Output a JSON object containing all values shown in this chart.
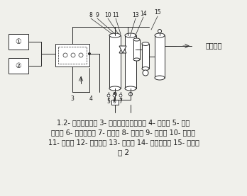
{
  "caption_lines": [
    "1.2- 螺杆式空压机 3- 双联除水除油过滤器 4- 冷却器 5- 除水",
    "过滤器 6- 除油过滤器 7- 切换阀 8- 吸附塔 9- 消音器 10- 止回阀",
    "11- 调节阀 12- 节流孔板 13- 加热器 14- 除尘过滤器 15- 储气罐"
  ],
  "figure_label": "图 2",
  "bg_color": "#f0f0eb",
  "text_color": "#1a1a1a",
  "line_color": "#2a2a2a",
  "font_size_caption": 7.0,
  "font_size_label": 7.5,
  "font_size_num": 5.5,
  "font_size_circled": 7.0,
  "font_size_userdot": 7.0
}
